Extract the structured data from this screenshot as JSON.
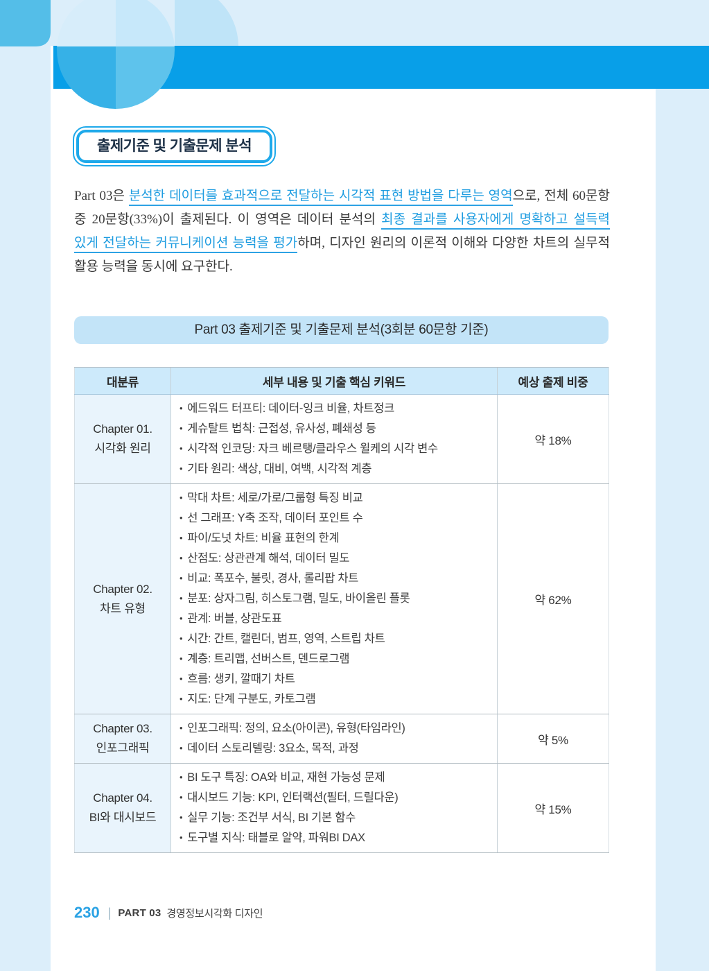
{
  "title_box": "출제기준 및 기출문제 분석",
  "intro": {
    "segments": [
      {
        "text": "Part 03은 ",
        "hl": false
      },
      {
        "text": "분석한 데이터를 효과적으로 전달하는 시각적 표현 방법을 다루는 영역",
        "hl": true
      },
      {
        "text": "으로, 전체 60문항 중 20문항(33%)이 출제된다. 이 영역은 데이터 분석의 ",
        "hl": false
      },
      {
        "text": "최종 결과를 사용자에게 명확하고 설득력 있게 전달하는 커뮤니케이션 능력을 평가",
        "hl": true
      },
      {
        "text": "하며, 디자인 원리의 이론적 이해와 다양한 차트의 실무적 활용 능력을 동시에 요구한다.",
        "hl": false
      }
    ]
  },
  "banner": "Part 03 출제기준 및 기출문제 분석(3회분 60문항 기준)",
  "table": {
    "bullet": "•",
    "headers": [
      "대분류",
      "세부 내용 및 기출 핵심 키워드",
      "예상 출제 비중"
    ],
    "rows": [
      {
        "chapter": "Chapter 01.",
        "name": "시각화 원리",
        "items": [
          "에드워드 터프티: 데이터-잉크 비율, 차트정크",
          "게슈탈트 법칙: 근접성, 유사성, 폐쇄성 등",
          "시각적 인코딩: 자크 베르탱/클라우스 윌케의 시각 변수",
          "기타 원리: 색상, 대비, 여백, 시각적 계층"
        ],
        "weight": "약 18%"
      },
      {
        "chapter": "Chapter 02.",
        "name": "차트 유형",
        "items": [
          "막대 차트: 세로/가로/그룹형 특징 비교",
          "선 그래프: Y축 조작, 데이터 포인트 수",
          "파이/도넛 차트: 비율 표현의 한계",
          "산점도: 상관관계 해석, 데이터 밀도",
          "비교: 폭포수, 불릿, 경사, 롤리팝 차트",
          "분포: 상자그림, 히스토그램, 밀도, 바이올린 플롯",
          "관계: 버블, 상관도표",
          "시간: 간트, 캘린더, 범프, 영역, 스트립 차트",
          "계층: 트리맵, 선버스트, 덴드로그램",
          "흐름: 생키, 깔때기 차트",
          "지도: 단계 구분도, 카토그램"
        ],
        "weight": "약 62%"
      },
      {
        "chapter": "Chapter 03.",
        "name": "인포그래픽",
        "items": [
          "인포그래픽: 정의, 요소(아이콘), 유형(타임라인)",
          "데이터 스토리텔링: 3요소, 목적, 과정"
        ],
        "weight": "약 5%"
      },
      {
        "chapter": "Chapter 04.",
        "name": "BI와 대시보드",
        "items": [
          "BI 도구 특징: OA와 비교, 재현 가능성 문제",
          "대시보드 기능: KPI, 인터랙션(필터, 드릴다운)",
          "실무 기능: 조건부 서식, BI 기본 함수",
          "도구별 지식: 태블로 알약, 파워BI DAX"
        ],
        "weight": "약 15%"
      }
    ]
  },
  "footer": {
    "page_number": "230",
    "separator": "|",
    "part": "PART 03",
    "book_title": "경영정보시각화 디자인"
  },
  "colors": {
    "band": "#dceefa",
    "bar": "#089fe8",
    "accent_blue": "#1e9ce0"
  }
}
